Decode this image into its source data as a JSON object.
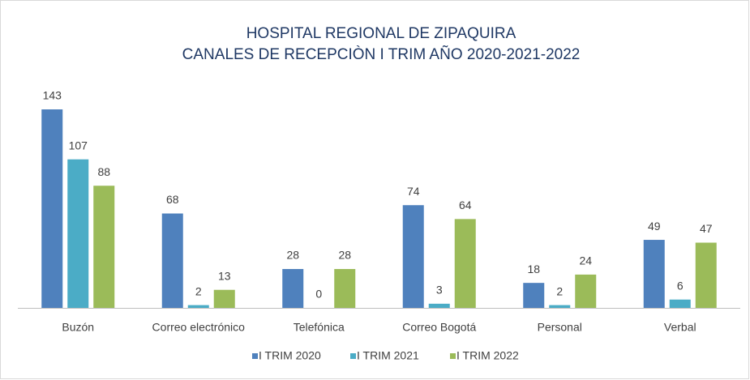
{
  "chart_data": {
    "type": "bar",
    "title": "HOSPITAL REGIONAL DE ZIPAQUIRA",
    "subtitle": "CANALES DE RECEPCIÒN  I TRIM AÑO 2020-2021-2022",
    "categories": [
      "Buzón",
      "Correo electrónico",
      "Telefónica",
      "Correo Bogotá",
      "Personal",
      "Verbal"
    ],
    "series": [
      {
        "name": "I TRIM 2020",
        "color": "#4f81bd",
        "values": [
          143,
          68,
          28,
          74,
          18,
          49
        ]
      },
      {
        "name": "I TRIM 2021",
        "color": "#4bacc6",
        "values": [
          107,
          2,
          0,
          3,
          2,
          6
        ]
      },
      {
        "name": "I TRIM 2022",
        "color": "#9bbb59",
        "values": [
          88,
          13,
          28,
          64,
          24,
          47
        ]
      }
    ],
    "legend": "bottom"
  }
}
